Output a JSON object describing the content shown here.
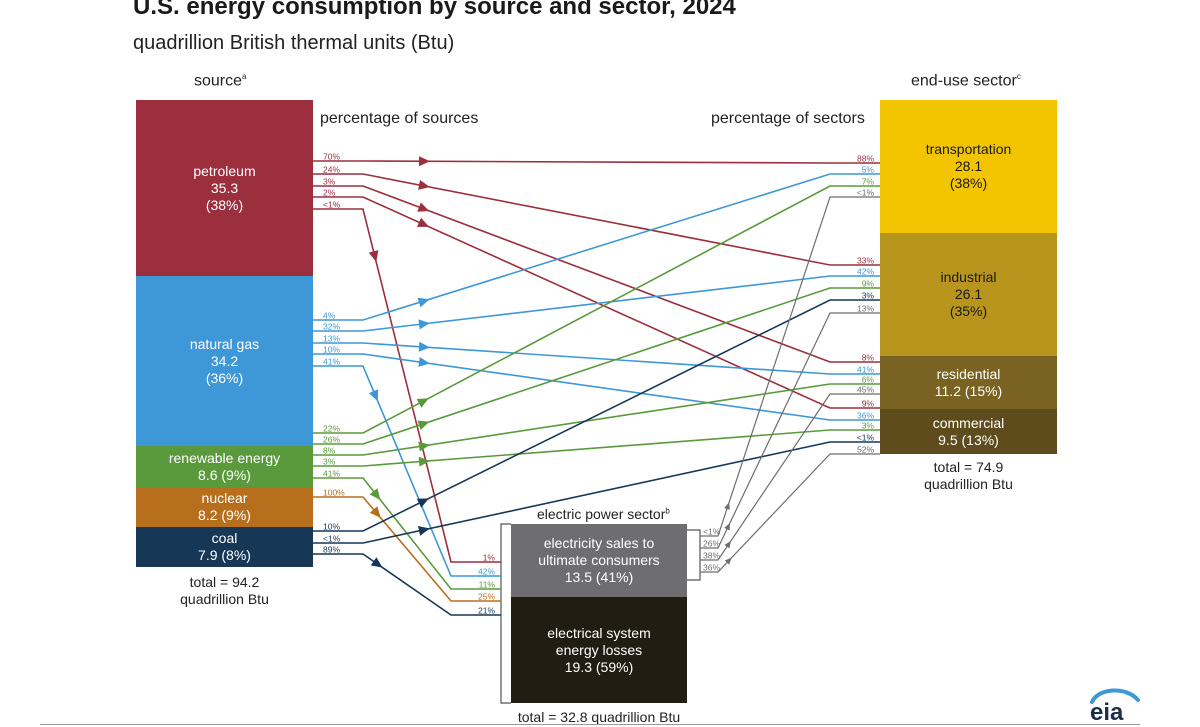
{
  "title": "U.S. energy consumption by source and sector, 2024",
  "subtitle": "quadrillion British thermal units (Btu)",
  "headers": {
    "source": "source",
    "source_note": "a",
    "sector": "end-use sector",
    "sector_note": "c",
    "pct_sources": "percentage of sources",
    "pct_sectors": "percentage of sectors",
    "electric": "electric power sector",
    "electric_note": "b"
  },
  "sources": [
    {
      "id": "petroleum",
      "name": "petroleum",
      "value": "35.3",
      "pct": "(38%)",
      "color": "#9b2f3e"
    },
    {
      "id": "gas",
      "name": "natural gas",
      "value": "34.2",
      "pct": "(36%)",
      "color": "#3e97d6"
    },
    {
      "id": "renew",
      "name": "renewable energy",
      "value": "8.6 (9%)",
      "color": "#5a9a3c"
    },
    {
      "id": "nuclear",
      "name": "nuclear",
      "value": "8.2 (9%)",
      "color": "#b86f1d"
    },
    {
      "id": "coal",
      "name": "coal",
      "value": "7.9 (8%)",
      "color": "#173757"
    }
  ],
  "sectors": [
    {
      "id": "transport",
      "name": "transportation",
      "value": "28.1",
      "pct": "(38%)",
      "color": "#f2c500"
    },
    {
      "id": "industrial",
      "name": "industrial",
      "value": "26.1",
      "pct": "(35%)",
      "color": "#b8951c"
    },
    {
      "id": "residential",
      "name": "residential",
      "value": "11.2 (15%)",
      "color": "#7a6322"
    },
    {
      "id": "commercial",
      "name": "commercial",
      "value": "9.5 (13%)",
      "color": "#5f4c1c"
    }
  ],
  "electric": {
    "sales_lines": [
      "electricity sales to",
      "ultimate consumers",
      "13.5 (41%)"
    ],
    "sales_color": "#6e6e70",
    "losses_lines": [
      "electrical system",
      "energy losses",
      "19.3 (59%)"
    ],
    "losses_color": "#211d12",
    "total": "total = 32.8 quadrillion Btu"
  },
  "totals": {
    "source_line1": "total = 94.2",
    "source_line2": "quadrillion Btu",
    "sector_line1": "total = 74.9",
    "sector_line2": "quadrillion Btu"
  },
  "flows": [
    {
      "from": "petroleum",
      "to": "transport",
      "src_pct": "70%",
      "dst_pct": "88%"
    },
    {
      "from": "petroleum",
      "to": "industrial",
      "src_pct": "24%",
      "dst_pct": "33%"
    },
    {
      "from": "petroleum",
      "to": "residential",
      "src_pct": "3%",
      "dst_pct": "8%"
    },
    {
      "from": "petroleum",
      "to": "commercial",
      "src_pct": "2%",
      "dst_pct": "9%"
    },
    {
      "from": "petroleum",
      "to": "electric",
      "src_pct": "<1%",
      "dst_pct": "1%"
    },
    {
      "from": "gas",
      "to": "transport",
      "src_pct": "4%",
      "dst_pct": "5%"
    },
    {
      "from": "gas",
      "to": "industrial",
      "src_pct": "32%",
      "dst_pct": "42%"
    },
    {
      "from": "gas",
      "to": "residential",
      "src_pct": "13%",
      "dst_pct": "41%"
    },
    {
      "from": "gas",
      "to": "commercial",
      "src_pct": "10%",
      "dst_pct": "36%"
    },
    {
      "from": "gas",
      "to": "electric",
      "src_pct": "41%",
      "dst_pct": "42%"
    },
    {
      "from": "renew",
      "to": "transport",
      "src_pct": "22%",
      "dst_pct": "7%"
    },
    {
      "from": "renew",
      "to": "industrial",
      "src_pct": "26%",
      "dst_pct": "9%"
    },
    {
      "from": "renew",
      "to": "residential",
      "src_pct": "8%",
      "dst_pct": "6%"
    },
    {
      "from": "renew",
      "to": "commercial",
      "src_pct": "3%",
      "dst_pct": "3%"
    },
    {
      "from": "renew",
      "to": "electric",
      "src_pct": "41%",
      "dst_pct": "11%"
    },
    {
      "from": "nuclear",
      "to": "electric",
      "src_pct": "100%",
      "dst_pct": "25%"
    },
    {
      "from": "coal",
      "to": "industrial",
      "src_pct": "10%",
      "dst_pct": "3%"
    },
    {
      "from": "coal",
      "to": "commercial",
      "src_pct": "<1%",
      "dst_pct": "<1%"
    },
    {
      "from": "coal",
      "to": "electric",
      "src_pct": "89%",
      "dst_pct": "21%"
    },
    {
      "from": "electric",
      "to": "transport",
      "src_pct": "<1%",
      "dst_pct": "<1%"
    },
    {
      "from": "electric",
      "to": "industrial",
      "src_pct": "26%",
      "dst_pct": "13%"
    },
    {
      "from": "electric",
      "to": "residential",
      "src_pct": "38%",
      "dst_pct": "45%"
    },
    {
      "from": "electric",
      "to": "commercial",
      "src_pct": "36%",
      "dst_pct": "52%"
    }
  ],
  "logo_text": "eia"
}
